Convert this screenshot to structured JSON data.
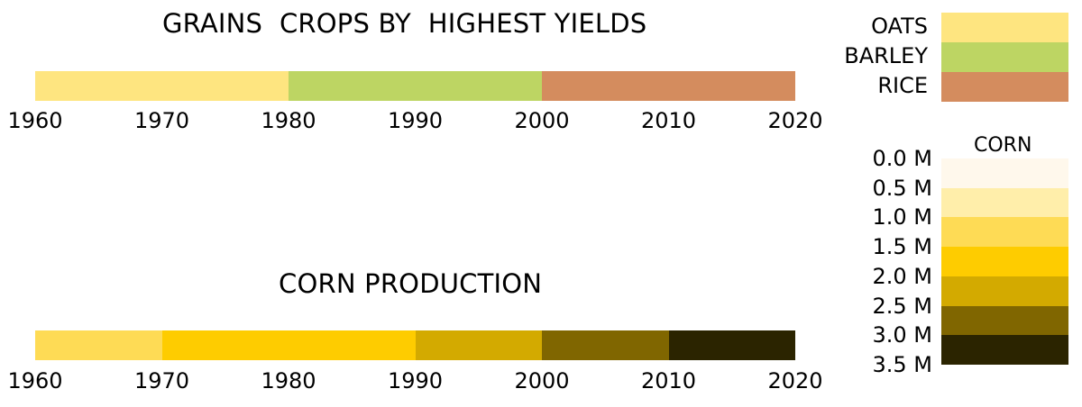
{
  "chart_data": [
    {
      "type": "heatmap",
      "title": "GRAINS  CROPS BY  HIGHEST YIELDS",
      "x_ticks": [
        "1960",
        "1970",
        "1980",
        "1990",
        "2000",
        "2010",
        "2020"
      ],
      "periods": [
        {
          "start": 1960,
          "end": 1970,
          "crop": "OATS"
        },
        {
          "start": 1970,
          "end": 1980,
          "crop": "OATS"
        },
        {
          "start": 1980,
          "end": 1990,
          "crop": "BARLEY"
        },
        {
          "start": 1990,
          "end": 2000,
          "crop": "BARLEY"
        },
        {
          "start": 2000,
          "end": 2010,
          "crop": "RICE"
        },
        {
          "start": 2010,
          "end": 2020,
          "crop": "RICE"
        }
      ],
      "legend": [
        {
          "label": "OATS",
          "color": "#fee580"
        },
        {
          "label": "BARLEY",
          "color": "#bdd563"
        },
        {
          "label": "RICE",
          "color": "#d48c5e"
        }
      ]
    },
    {
      "type": "heatmap",
      "title": "CORN PRODUCTION",
      "x_ticks": [
        "1960",
        "1970",
        "1980",
        "1990",
        "2000",
        "2010",
        "2020"
      ],
      "periods": [
        {
          "start": 1960,
          "end": 1970,
          "bin": 2
        },
        {
          "start": 1970,
          "end": 1980,
          "bin": 3
        },
        {
          "start": 1980,
          "end": 1990,
          "bin": 3
        },
        {
          "start": 1990,
          "end": 2000,
          "bin": 4
        },
        {
          "start": 2000,
          "end": 2010,
          "bin": 5
        },
        {
          "start": 2010,
          "end": 2020,
          "bin": 6
        }
      ],
      "legend_title": "CORN",
      "legend_labels": [
        "0.0 M",
        "0.5 M",
        "1.0 M",
        "1.5 M",
        "2.0 M",
        "2.5 M",
        "3.0 M",
        "3.5 M"
      ],
      "bin_colors": [
        "#fff8ec",
        "#ffeeaa",
        "#fedb55",
        "#fecc00",
        "#d3aa00",
        "#806600",
        "#2b2400"
      ]
    }
  ]
}
